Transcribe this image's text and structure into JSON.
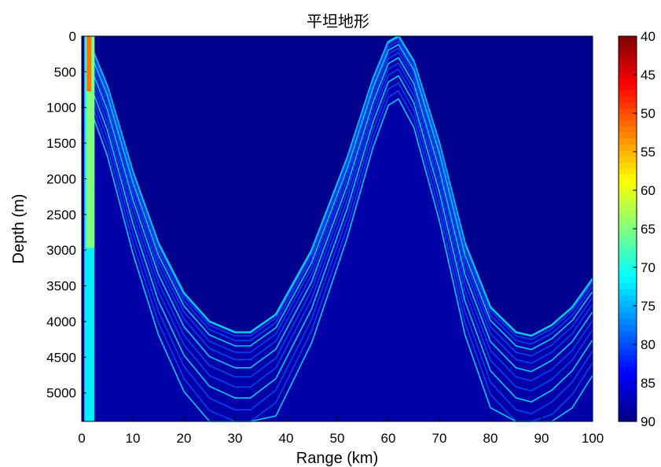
{
  "chart_data": {
    "type": "heatmap",
    "title": "平坦地形",
    "xlabel": "Range (km)",
    "ylabel": "Depth (m)",
    "xlim": [
      0,
      100
    ],
    "ylim": [
      0,
      5400
    ],
    "y_reversed": true,
    "xticks": [
      0,
      10,
      20,
      30,
      40,
      50,
      60,
      70,
      80,
      90,
      100
    ],
    "xtick_labels": [
      "0",
      "10",
      "20",
      "30",
      "40",
      "50",
      "60",
      "70",
      "80",
      "90",
      "100"
    ],
    "yticks": [
      0,
      500,
      1000,
      1500,
      2000,
      2500,
      3000,
      3500,
      4000,
      4500,
      5000
    ],
    "ytick_labels": [
      "0",
      "500",
      "1000",
      "1500",
      "2000",
      "2500",
      "3000",
      "3500",
      "4000",
      "4500",
      "5000"
    ],
    "colorbar": {
      "colormap": "jet",
      "range": [
        40,
        90
      ],
      "reversed": true,
      "ticks": [
        40,
        45,
        50,
        55,
        60,
        65,
        70,
        75,
        80,
        85,
        90
      ],
      "tick_labels": [
        "40",
        "45",
        "50",
        "55",
        "60",
        "65",
        "70",
        "75",
        "80",
        "85",
        "90"
      ]
    },
    "background_value": 90,
    "features": {
      "source_column": {
        "range_km": [
          0.5,
          2.5
        ],
        "level": 65
      },
      "upper_envelope": [
        [
          1,
          0
        ],
        [
          5,
          700
        ],
        [
          10,
          1900
        ],
        [
          15,
          2900
        ],
        [
          20,
          3600
        ],
        [
          25,
          4000
        ],
        [
          30,
          4150
        ],
        [
          33,
          4150
        ],
        [
          38,
          3900
        ],
        [
          45,
          3000
        ],
        [
          52,
          1700
        ],
        [
          57,
          600
        ],
        [
          60,
          80
        ],
        [
          62,
          0
        ],
        [
          65,
          350
        ],
        [
          70,
          1500
        ],
        [
          75,
          2900
        ],
        [
          80,
          3800
        ],
        [
          85,
          4150
        ],
        [
          88,
          4200
        ],
        [
          92,
          4050
        ],
        [
          96,
          3800
        ],
        [
          100,
          3400
        ]
      ],
      "ray_fan_levels": [
        88,
        80,
        72
      ]
    }
  }
}
